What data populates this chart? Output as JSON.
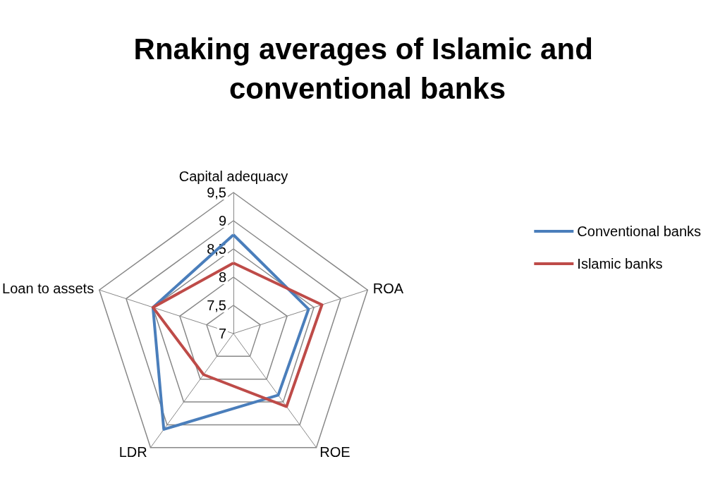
{
  "chart_data": {
    "type": "radar",
    "title": "Rnaking averages of Islamic and conventional banks",
    "categories": [
      "Capital adequacy",
      "ROA",
      "ROE",
      "LDR",
      "Loan to assets"
    ],
    "series": [
      {
        "name": "Conventional banks",
        "color": "#4a7ebb",
        "values": [
          8.75,
          8.4,
          8.35,
          9.1,
          8.5
        ]
      },
      {
        "name": "Islamic banks",
        "color": "#be4b48",
        "values": [
          8.25,
          8.65,
          8.6,
          7.9,
          8.5
        ]
      }
    ],
    "ylim": [
      7,
      9.5
    ],
    "yticks": [
      7,
      {
        "value": 7.5,
        "label": "7,5"
      },
      8,
      {
        "value": 8.5,
        "label": "8,5"
      },
      9,
      {
        "value": 9.5,
        "label": "9,5"
      }
    ],
    "grid": true,
    "legend": "right",
    "marker": "none",
    "line_style": "solid"
  }
}
